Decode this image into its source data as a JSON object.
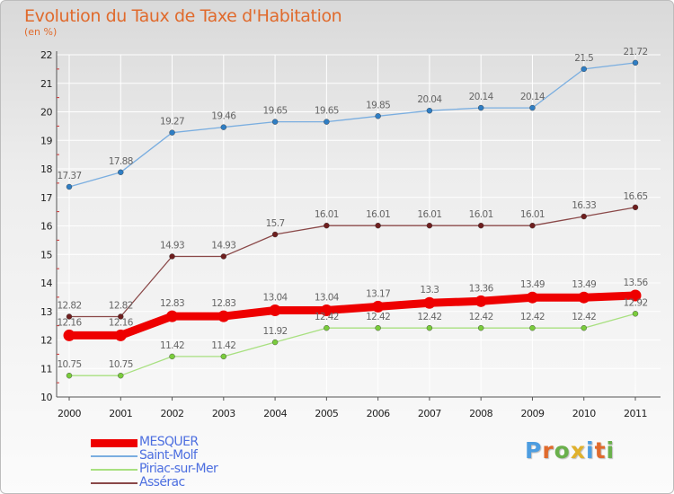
{
  "colors": {
    "title": "#e06a2c",
    "legend_text": "#4d6fe0",
    "grid": "#ffffff",
    "axis": "#555555",
    "tick_label": "#222222",
    "data_label": "#666666",
    "minor_tick": "#cc3333"
  },
  "brand": {
    "text": "Proxiti",
    "letter_colors": [
      "#4d9de0",
      "#e06a2c",
      "#6ab04c",
      "#e0b12c",
      "#4d9de0",
      "#e06a2c",
      "#6ab04c"
    ]
  },
  "chart_data": {
    "type": "line",
    "title": "Evolution du Taux de Taxe d'Habitation",
    "subtitle": "(en %)",
    "xlabel": "",
    "ylabel": "",
    "x": [
      "2000",
      "2001",
      "2002",
      "2003",
      "2004",
      "2005",
      "2006",
      "2007",
      "2008",
      "2009",
      "2010",
      "2011"
    ],
    "ylim": [
      10,
      22
    ],
    "yticks": [
      "10",
      "11",
      "12",
      "13",
      "14",
      "15",
      "16",
      "17",
      "18",
      "19",
      "20",
      "21",
      "22"
    ],
    "grid": true,
    "legend_position": "bottom-left",
    "series": [
      {
        "name": "MESQUER",
        "color": "#ee0000",
        "point_color": "#ee0000",
        "emphasis": true,
        "values": [
          12.16,
          12.16,
          12.83,
          12.83,
          13.04,
          13.04,
          13.17,
          13.3,
          13.36,
          13.49,
          13.49,
          13.56
        ],
        "labels": [
          "12.16",
          "12.16",
          "12.83",
          "12.83",
          "13.04",
          "13.04",
          "13.17",
          "13.3",
          "13.36",
          "13.49",
          "13.49",
          "13.56"
        ]
      },
      {
        "name": "Saint-Molf",
        "color": "#7aaee0",
        "point_color": "#2f7ec4",
        "emphasis": false,
        "values": [
          17.37,
          17.88,
          19.27,
          19.46,
          19.65,
          19.65,
          19.85,
          20.04,
          20.14,
          20.14,
          21.5,
          21.72
        ],
        "labels": [
          "17.37",
          "17.88",
          "19.27",
          "19.46",
          "19.65",
          "19.65",
          "19.85",
          "20.04",
          "20.14",
          "20.14",
          "21.5",
          "21.72"
        ]
      },
      {
        "name": "Piriac-sur-Mer",
        "color": "#a8e080",
        "point_color": "#7acc3c",
        "emphasis": false,
        "values": [
          10.75,
          10.75,
          11.42,
          11.42,
          11.92,
          12.42,
          12.42,
          12.42,
          12.42,
          12.42,
          12.42,
          12.92
        ],
        "labels": [
          "10.75",
          "10.75",
          "11.42",
          "11.42",
          "11.92",
          "12.42",
          "12.42",
          "12.42",
          "12.42",
          "12.42",
          "12.42",
          "12.92"
        ]
      },
      {
        "name": "Assérac",
        "color": "#8a4848",
        "point_color": "#6e1f1f",
        "emphasis": false,
        "values": [
          12.82,
          12.82,
          14.93,
          14.93,
          15.7,
          16.01,
          16.01,
          16.01,
          16.01,
          16.01,
          16.33,
          16.65
        ],
        "labels": [
          "12.82",
          "12.82",
          "14.93",
          "14.93",
          "15.7",
          "16.01",
          "16.01",
          "16.01",
          "16.01",
          "16.01",
          "16.33",
          "16.65"
        ]
      }
    ]
  }
}
